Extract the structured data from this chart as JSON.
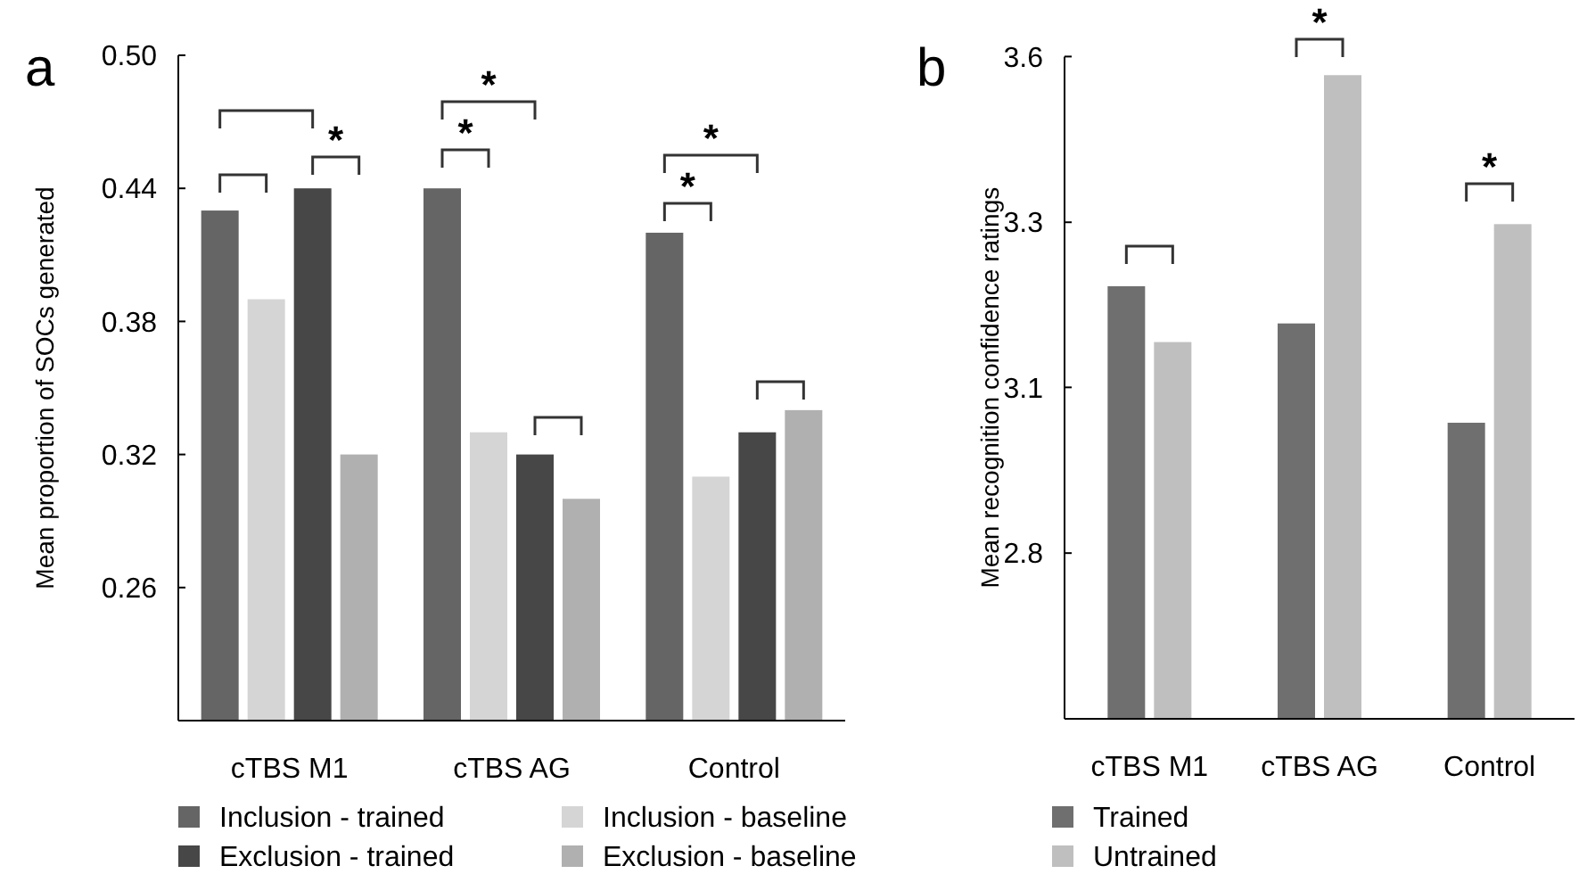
{
  "chart_data": [
    {
      "type": "bar",
      "title": "a",
      "ylabel": "Mean proportion of SOCs generated",
      "categories": [
        "cTBS M1",
        "cTBS AG",
        "Control"
      ],
      "series": [
        {
          "name": "Inclusion - trained",
          "color": "#656565",
          "values": [
            0.43,
            0.44,
            0.42
          ]
        },
        {
          "name": "Inclusion - baseline",
          "color": "#d5d5d5",
          "values": [
            0.39,
            0.33,
            0.31
          ]
        },
        {
          "name": "Exclusion - trained",
          "color": "#474747",
          "values": [
            0.44,
            0.32,
            0.33
          ]
        },
        {
          "name": "Exclusion - baseline",
          "color": "#b0b0b0",
          "values": [
            0.32,
            0.3,
            0.34
          ]
        }
      ],
      "ylim": [
        0.2,
        0.5
      ],
      "yticks": [
        {
          "value": 0.5,
          "label": "0.50"
        },
        0.44,
        0.38,
        0.32,
        0.26
      ],
      "grid": false,
      "legend": "bottom",
      "annotations": [
        "*",
        "*",
        "*",
        "*",
        "*"
      ]
    },
    {
      "type": "bar",
      "title": "b",
      "ylabel": "Mean recognition confidence ratings",
      "categories": [
        "cTBS M1",
        "cTBS AG",
        "Control"
      ],
      "series": [
        {
          "name": "Trained",
          "color": "#6f6f6f",
          "values": [
            3.23,
            3.17,
            3.01
          ]
        },
        {
          "name": "Untrained",
          "color": "#bfbfbf",
          "values": [
            3.14,
            3.57,
            3.33
          ]
        }
      ],
      "ylim": [
        2.533,
        3.6
      ],
      "yticks": [
        3.6,
        {
          "value": 3.333,
          "label": "3.3"
        },
        {
          "value": 3.067,
          "label": "3.1"
        },
        2.8
      ],
      "grid": false,
      "legend": "bottom",
      "annotations": [
        "*",
        "*"
      ]
    }
  ]
}
